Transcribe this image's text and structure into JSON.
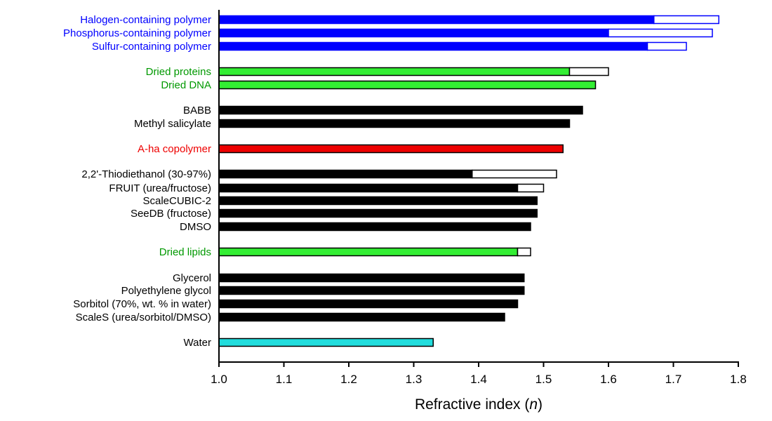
{
  "chart_data": {
    "type": "bar",
    "orientation": "horizontal",
    "xlabel": "Refractive index (n)",
    "xlabel_prefix": "Refractive index (",
    "xlabel_var": "n",
    "xlabel_suffix": ")",
    "xlim": [
      1.0,
      1.8
    ],
    "xticks": [
      "1.0",
      "1.1",
      "1.2",
      "1.3",
      "1.4",
      "1.5",
      "1.6",
      "1.7",
      "1.8"
    ],
    "grid": false,
    "colors": {
      "blue": "#0000ff",
      "green": "#33ee33",
      "green_text": "#009900",
      "black": "#000000",
      "red": "#ee0000",
      "cyan": "#22dddd",
      "range_fill": "#ffffff"
    },
    "categories": [
      {
        "label": "Halogen-containing polymer",
        "value": 1.67,
        "max": 1.77,
        "color": "blue",
        "label_color": "blue"
      },
      {
        "label": "Phosphorus-containing polymer",
        "value": 1.6,
        "max": 1.76,
        "color": "blue",
        "label_color": "blue"
      },
      {
        "label": "Sulfur-containing polymer",
        "value": 1.66,
        "max": 1.72,
        "color": "blue",
        "label_color": "blue"
      },
      {
        "label": "Dried proteins",
        "value": 1.54,
        "max": 1.6,
        "color": "green",
        "label_color": "green_text"
      },
      {
        "label": "Dried DNA",
        "value": 1.58,
        "color": "green",
        "label_color": "green_text"
      },
      {
        "label": "BABB",
        "value": 1.56,
        "color": "black",
        "label_color": "black"
      },
      {
        "label": "Methyl salicylate",
        "value": 1.54,
        "color": "black",
        "label_color": "black"
      },
      {
        "label": "A-ha copolymer",
        "value": 1.53,
        "color": "red",
        "label_color": "red"
      },
      {
        "label": "2,2'-Thiodiethanol (30-97%)",
        "value": 1.39,
        "max": 1.52,
        "color": "black",
        "label_color": "black"
      },
      {
        "label": "FRUIT (urea/fructose)",
        "value": 1.46,
        "max": 1.5,
        "color": "black",
        "label_color": "black"
      },
      {
        "label": "ScaleCUBIC-2",
        "value": 1.49,
        "color": "black",
        "label_color": "black"
      },
      {
        "label": "SeeDB (fructose)",
        "value": 1.49,
        "color": "black",
        "label_color": "black"
      },
      {
        "label": "DMSO",
        "value": 1.48,
        "color": "black",
        "label_color": "black"
      },
      {
        "label": "Dried lipids",
        "value": 1.46,
        "max": 1.48,
        "color": "green",
        "label_color": "green_text"
      },
      {
        "label": "Glycerol",
        "value": 1.47,
        "color": "black",
        "label_color": "black"
      },
      {
        "label": "Polyethylene glycol",
        "value": 1.47,
        "color": "black",
        "label_color": "black"
      },
      {
        "label": "Sorbitol (70%, wt. % in water)",
        "value": 1.46,
        "color": "black",
        "label_color": "black"
      },
      {
        "label": "ScaleS (urea/sorbitol/DMSO)",
        "value": 1.44,
        "color": "black",
        "label_color": "black"
      },
      {
        "label": "Water",
        "value": 1.33,
        "color": "cyan",
        "label_color": "black"
      }
    ]
  }
}
